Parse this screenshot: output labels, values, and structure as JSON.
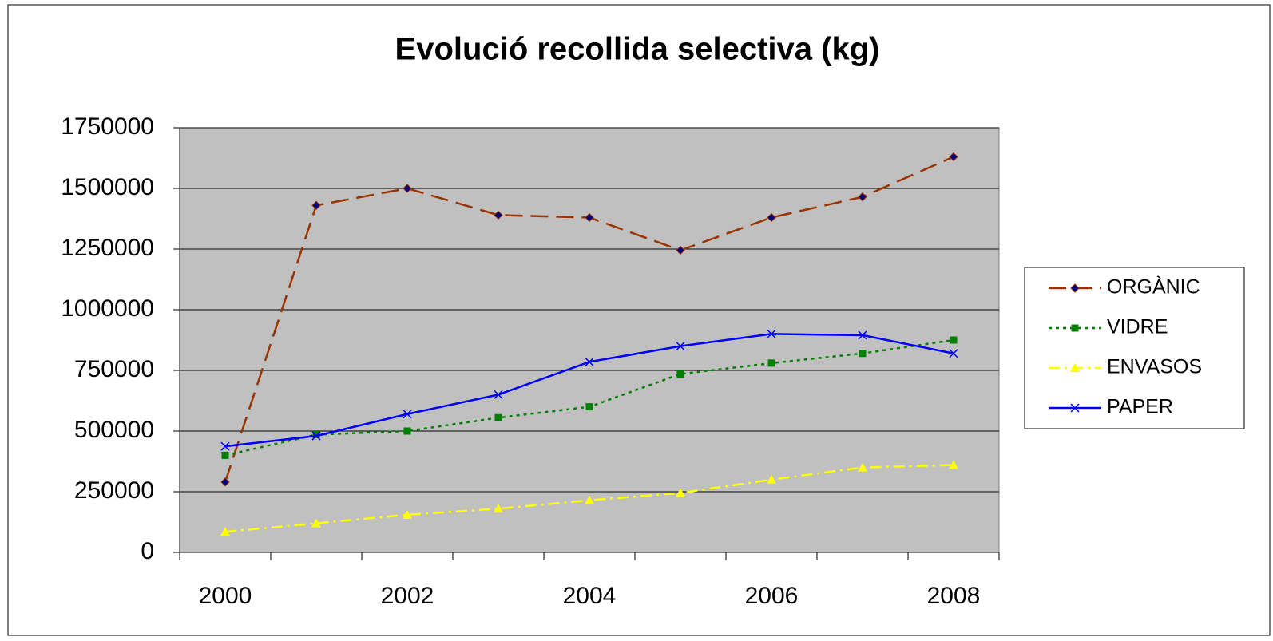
{
  "chart_data": {
    "type": "line",
    "title": "Evolució recollida selectiva (kg)",
    "categories": [
      "2000",
      null,
      "2002",
      null,
      "2004",
      null,
      "2006",
      null,
      "2008"
    ],
    "series": [
      {
        "name": "ORGÀNIC",
        "color": "#993300",
        "line_style": "long-dash",
        "marker": "diamond",
        "values": [
          290000,
          1430000,
          1500000,
          1390000,
          1380000,
          1245000,
          1380000,
          1465000,
          1630000
        ]
      },
      {
        "name": "VIDRE",
        "color": "#008000",
        "line_style": "dotted",
        "marker": "square",
        "values": [
          400000,
          485000,
          500000,
          555000,
          600000,
          735000,
          780000,
          820000,
          875000
        ]
      },
      {
        "name": "ENVASOS",
        "color": "#ffff00",
        "line_style": "dash-dot",
        "marker": "triangle",
        "values": [
          85000,
          120000,
          155000,
          180000,
          215000,
          245000,
          300000,
          350000,
          360000
        ]
      },
      {
        "name": "PAPER",
        "color": "#0000ff",
        "line_style": "solid",
        "marker": "x",
        "values": [
          437000,
          480000,
          570000,
          650000,
          785000,
          850000,
          900000,
          895000,
          820000
        ]
      }
    ],
    "ylim": [
      0,
      1750000
    ],
    "yticks": [
      0,
      250000,
      500000,
      750000,
      1000000,
      1250000,
      1500000,
      1750000
    ],
    "grid": true,
    "plot_background": "#c0c0c0",
    "legend": "right"
  }
}
